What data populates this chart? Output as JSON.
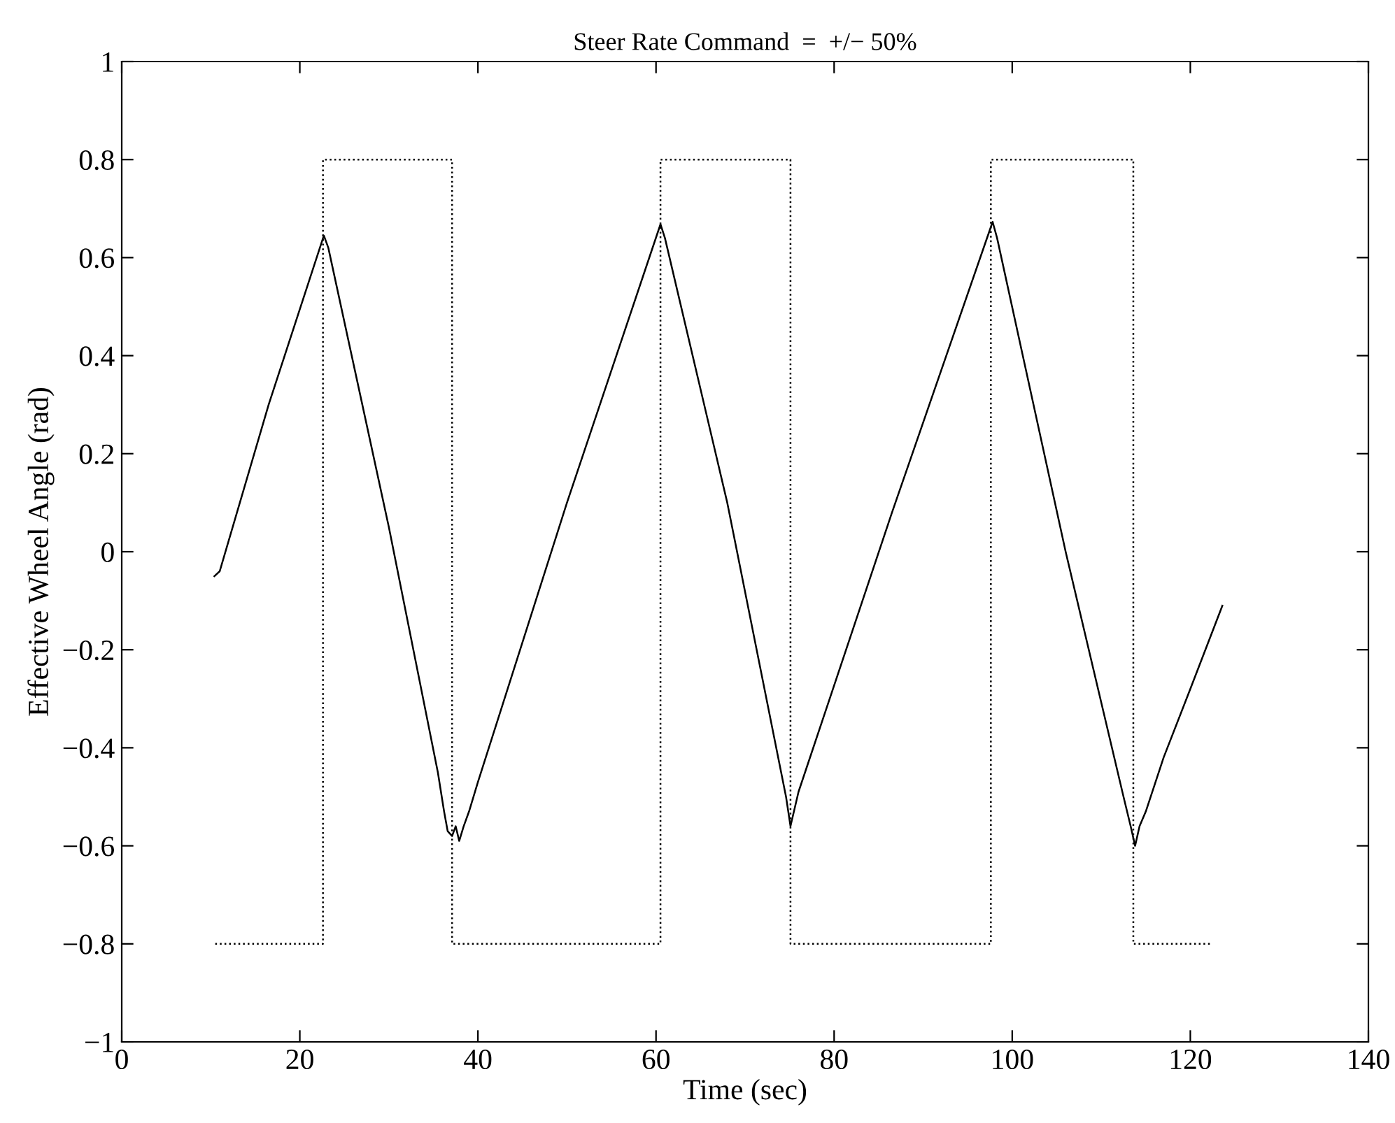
{
  "chart_data": {
    "type": "line",
    "title": "Steer Rate Command  =  +/− 50%",
    "xlabel": "Time (sec)",
    "ylabel": "Effective Wheel Angle (rad)",
    "xlim": [
      0,
      140
    ],
    "xticks": [
      0,
      20,
      40,
      60,
      80,
      100,
      120,
      140
    ],
    "ylim": [
      -1,
      1
    ],
    "yticks": [
      {
        "value": -1,
        "label": "−1"
      },
      {
        "value": -0.8,
        "label": "−0.8"
      },
      {
        "value": -0.6,
        "label": "−0.6"
      },
      {
        "value": -0.4,
        "label": "−0.4"
      },
      {
        "value": -0.2,
        "label": "−0.2"
      },
      0,
      0.2,
      0.4,
      0.6,
      0.8,
      1
    ],
    "grid": false,
    "legend": false,
    "series": [
      {
        "color": "#000000",
        "line_style": "solid",
        "x": [
          10.4,
          11.0,
          16.5,
          22.7,
          23.2,
          30.0,
          35.5,
          36.2,
          36.6,
          37.1,
          37.5,
          37.9,
          38.4,
          39.0,
          40.0,
          50.0,
          60.5,
          61.0,
          68.0,
          74.6,
          75.1,
          76.0,
          86.5,
          97.8,
          98.3,
          106.0,
          112.5,
          113.3,
          113.8,
          114.3,
          115.0,
          117.0,
          120.0,
          123.6
        ],
        "values": [
          -0.05,
          -0.04,
          0.3,
          0.645,
          0.62,
          0.05,
          -0.45,
          -0.53,
          -0.57,
          -0.58,
          -0.56,
          -0.59,
          -0.56,
          -0.53,
          -0.47,
          0.1,
          0.668,
          0.64,
          0.1,
          -0.5,
          -0.56,
          -0.49,
          0.08,
          0.673,
          0.64,
          0.0,
          -0.5,
          -0.56,
          -0.6,
          -0.56,
          -0.53,
          -0.42,
          -0.28,
          -0.11
        ]
      },
      {
        "type": "step",
        "color": "#000000",
        "line_style": "dotted",
        "x": [
          10.5,
          22.6,
          37.1,
          60.5,
          75.1,
          97.6,
          113.6,
          122.3
        ],
        "values": [
          -0.8,
          0.8,
          -0.8,
          0.8,
          -0.8,
          0.8,
          -0.8,
          -0.8
        ]
      }
    ]
  }
}
